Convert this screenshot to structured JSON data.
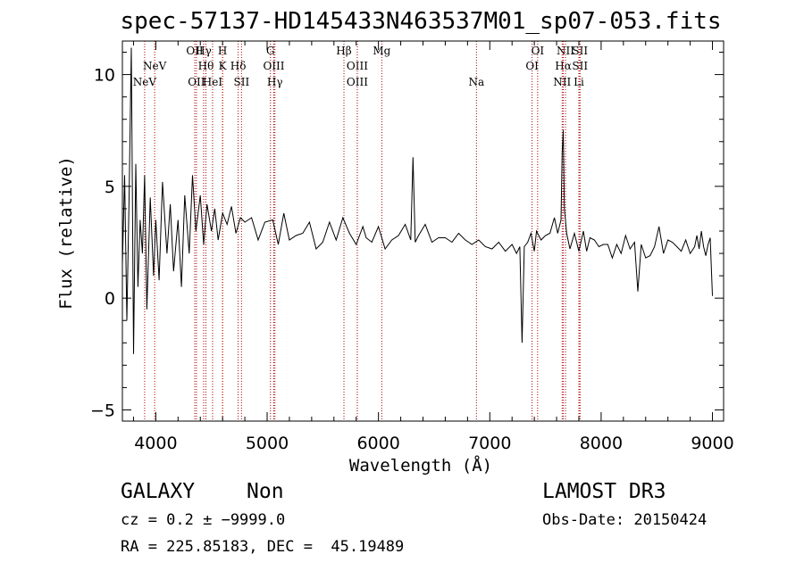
{
  "chart_data": {
    "type": "line",
    "title": "spec-57137-HD145433N463537M01_sp07-053.fits",
    "xlabel": "Wavelength (Å)",
    "ylabel": "Flux (relative)",
    "xlim": [
      3700,
      9100
    ],
    "ylim": [
      -5.5,
      11.5
    ],
    "xticks": [
      4000,
      5000,
      6000,
      7000,
      8000,
      9000
    ],
    "yticks": [
      -5,
      0,
      5,
      10
    ],
    "grid": false,
    "series": [
      {
        "name": "flux",
        "x": [
          3700,
          3720,
          3740,
          3760,
          3780,
          3800,
          3820,
          3840,
          3860,
          3880,
          3900,
          3920,
          3950,
          3980,
          4000,
          4030,
          4060,
          4100,
          4130,
          4160,
          4200,
          4230,
          4260,
          4300,
          4330,
          4360,
          4400,
          4430,
          4460,
          4500,
          4530,
          4560,
          4600,
          4640,
          4680,
          4720,
          4760,
          4800,
          4860,
          4920,
          4980,
          5050,
          5100,
          5150,
          5200,
          5260,
          5320,
          5380,
          5440,
          5500,
          5560,
          5620,
          5680,
          5740,
          5800,
          5860,
          5890,
          5940,
          6000,
          6060,
          6120,
          6180,
          6240,
          6290,
          6310,
          6330,
          6360,
          6420,
          6480,
          6540,
          6600,
          6660,
          6720,
          6780,
          6840,
          6900,
          6960,
          7020,
          7080,
          7140,
          7200,
          7240,
          7270,
          7290,
          7310,
          7340,
          7370,
          7400,
          7420,
          7460,
          7500,
          7540,
          7580,
          7610,
          7640,
          7650,
          7660,
          7670,
          7690,
          7720,
          7760,
          7800,
          7840,
          7870,
          7900,
          7940,
          7980,
          8020,
          8060,
          8100,
          8140,
          8180,
          8220,
          8260,
          8300,
          8330,
          8360,
          8400,
          8440,
          8480,
          8520,
          8560,
          8600,
          8640,
          8680,
          8720,
          8760,
          8800,
          8840,
          8860,
          8880,
          8900,
          8920,
          8940,
          8960,
          8980,
          9000
        ],
        "y": [
          1.5,
          5.5,
          -1.0,
          4.5,
          11.2,
          -2.5,
          6.0,
          0.5,
          3.5,
          2.0,
          5.5,
          -0.5,
          4.5,
          1.0,
          3.5,
          0.8,
          5.2,
          2.0,
          4.2,
          1.2,
          3.5,
          0.5,
          4.6,
          2.0,
          5.5,
          3.0,
          4.6,
          2.4,
          4.2,
          3.0,
          4.0,
          2.6,
          3.8,
          3.3,
          4.1,
          2.9,
          3.6,
          3.4,
          3.6,
          2.6,
          3.4,
          3.5,
          2.4,
          3.8,
          2.6,
          2.8,
          2.9,
          3.4,
          2.2,
          2.5,
          3.4,
          2.6,
          3.6,
          2.9,
          2.4,
          3.2,
          2.7,
          2.5,
          3.2,
          2.2,
          2.6,
          2.8,
          3.3,
          2.6,
          6.3,
          2.5,
          2.8,
          3.3,
          2.5,
          2.7,
          2.7,
          2.5,
          2.9,
          2.6,
          2.4,
          2.6,
          2.3,
          2.2,
          2.5,
          2.1,
          2.4,
          2.0,
          2.3,
          -2.0,
          2.3,
          2.5,
          2.9,
          2.1,
          3.0,
          2.6,
          2.8,
          2.9,
          3.6,
          2.9,
          3.5,
          6.5,
          7.5,
          4.0,
          2.9,
          2.2,
          2.9,
          2.1,
          3.0,
          2.1,
          2.7,
          2.6,
          2.3,
          2.4,
          2.4,
          1.8,
          2.4,
          2.0,
          2.8,
          2.2,
          2.5,
          0.3,
          2.4,
          1.8,
          1.9,
          2.3,
          3.2,
          2.0,
          2.6,
          2.5,
          2.3,
          2.1,
          2.6,
          2.0,
          2.3,
          2.8,
          2.2,
          3.0,
          2.3,
          1.9,
          2.4,
          2.7,
          0.1
        ]
      }
    ],
    "emission_lines": [
      {
        "x": 3900,
        "label": "NeV",
        "row": 3
      },
      {
        "x": 3990,
        "label": "NeV",
        "row": 2
      },
      {
        "x": 4350,
        "label": "OII",
        "row": 1
      },
      {
        "x": 4365,
        "label": "OII",
        "row": 3
      },
      {
        "x": 4430,
        "label": "Hγ",
        "row": 1
      },
      {
        "x": 4450,
        "label": "Hθ",
        "row": 2
      },
      {
        "x": 4510,
        "label": "HeI",
        "row": 3
      },
      {
        "x": 4600,
        "label": "H",
        "row": 1
      },
      {
        "x": 4600,
        "label": "K",
        "row": 2
      },
      {
        "x": 4740,
        "label": "Hδ",
        "row": 2
      },
      {
        "x": 4770,
        "label": "SII",
        "row": 3
      },
      {
        "x": 5030,
        "label": "G",
        "row": 1
      },
      {
        "x": 5060,
        "label": "OIII",
        "row": 2
      },
      {
        "x": 5070,
        "label": "Hγ",
        "row": 3
      },
      {
        "x": 5690,
        "label": "Hβ",
        "row": 1
      },
      {
        "x": 5810,
        "label": "OIII",
        "row": 2
      },
      {
        "x": 5810,
        "label": "OIII",
        "row": 3
      },
      {
        "x": 6030,
        "label": "Mg",
        "row": 1
      },
      {
        "x": 6880,
        "label": "Na",
        "row": 3
      },
      {
        "x": 7430,
        "label": "OI",
        "row": 1
      },
      {
        "x": 7380,
        "label": "OI",
        "row": 2
      },
      {
        "x": 7680,
        "label": "NII",
        "row": 1
      },
      {
        "x": 7660,
        "label": "Hα",
        "row": 2
      },
      {
        "x": 7650,
        "label": "NII",
        "row": 3
      },
      {
        "x": 7810,
        "label": "SII",
        "row": 1
      },
      {
        "x": 7810,
        "label": "SII",
        "row": 2
      },
      {
        "x": 7800,
        "label": "Li",
        "row": 3
      }
    ]
  },
  "info": {
    "object_class": "GALAXY",
    "subclass": "Non",
    "survey": "LAMOST DR3",
    "redshift": "cz = 0.2 ± −9999.0",
    "obs_date": "Obs-Date: 20150424",
    "coords": "RA = 225.85183, DEC =  45.19489"
  }
}
